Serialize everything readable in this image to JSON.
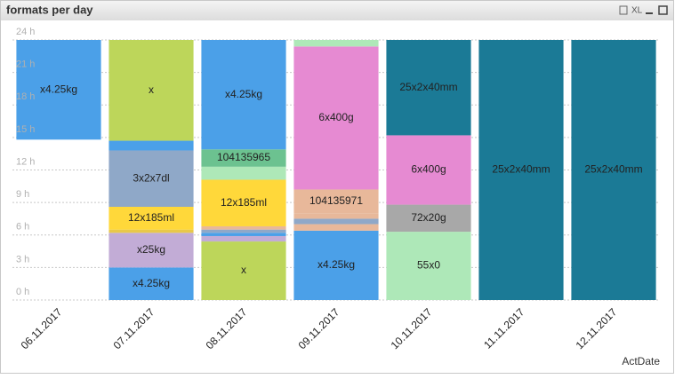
{
  "toolbar": {
    "export": "XL"
  },
  "chart_data": {
    "type": "stacked_bar",
    "title": "formats per day",
    "x_label": "ActDate",
    "categories": [
      "06.11.2017",
      "07.11.2017",
      "08.11.2017",
      "09.11.2017",
      "10.11.2017",
      "11.11.2017",
      "12.11.2017"
    ],
    "ylim": [
      0,
      24
    ],
    "yticks": [
      {
        "value": 0,
        "label": "0 h"
      },
      {
        "value": 3,
        "label": "3 h"
      },
      {
        "value": 6,
        "label": "6 h"
      },
      {
        "value": 9,
        "label": "9 h"
      },
      {
        "value": 12,
        "label": "12 h"
      },
      {
        "value": 15,
        "label": "15 h"
      },
      {
        "value": 18,
        "label": "18 h"
      },
      {
        "value": 21,
        "label": "21 h"
      },
      {
        "value": 24,
        "label": "24 h"
      }
    ],
    "grid": true,
    "bars": [
      [
        {
          "label": null,
          "value": 14.8,
          "color": null
        },
        {
          "label": "x4.25kg",
          "value": 9.2,
          "color": "#4ba0e8"
        }
      ],
      [
        {
          "label": "x4.25kg",
          "value": 3.0,
          "color": "#4ba0e8"
        },
        {
          "label": "x25kg",
          "value": 3.2,
          "color": "#c2acd6"
        },
        {
          "label": null,
          "value": 0.3,
          "color": "#e8c84a"
        },
        {
          "label": "12x185ml",
          "value": 2.1,
          "color": "#ffd83a"
        },
        {
          "label": "3x2x7dl",
          "value": 5.2,
          "color": "#8fa8c8"
        },
        {
          "label": null,
          "value": 0.9,
          "color": "#4ba0e8"
        },
        {
          "label": "x",
          "value": 9.3,
          "color": "#bdd65a"
        }
      ],
      [
        {
          "label": "x",
          "value": 5.4,
          "color": "#bdd65a"
        },
        {
          "label": null,
          "value": 0.5,
          "color": "#c2acd6"
        },
        {
          "label": null,
          "value": 0.3,
          "color": "#4ba0e8"
        },
        {
          "label": null,
          "value": 0.3,
          "color": "#8fa8c8"
        },
        {
          "label": null,
          "value": 0.3,
          "color": "#e8b89a"
        },
        {
          "label": "12x185ml",
          "value": 4.3,
          "color": "#ffd83a"
        },
        {
          "label": null,
          "value": 1.2,
          "color": "#aee8b8"
        },
        {
          "label": "104135965",
          "value": 1.6,
          "color": "#6cc290"
        },
        {
          "label": "x4.25kg",
          "value": 10.1,
          "color": "#4ba0e8"
        }
      ],
      [
        {
          "label": "x4.25kg",
          "value": 6.4,
          "color": "#4ba0e8"
        },
        {
          "label": null,
          "value": 0.6,
          "color": "#e8b89a"
        },
        {
          "label": null,
          "value": 0.5,
          "color": "#8fa8c8"
        },
        {
          "label": null,
          "value": 0.5,
          "color": "#e8b89a"
        },
        {
          "label": "104135971",
          "value": 2.2,
          "color": "#e8b89a"
        },
        {
          "label": "6x400g",
          "value": 13.2,
          "color": "#e68ad2"
        },
        {
          "label": null,
          "value": 0.6,
          "color": "#aee8b8"
        }
      ],
      [
        {
          "label": "55x0",
          "value": 6.3,
          "color": "#aee8b8"
        },
        {
          "label": "72x20g",
          "value": 2.5,
          "color": "#a8a8a8"
        },
        {
          "label": "6x400g",
          "value": 6.4,
          "color": "#e68ad2"
        },
        {
          "label": "25x2x40mm",
          "value": 8.8,
          "color": "#1b7a96"
        }
      ],
      [
        {
          "label": "25x2x40mm",
          "value": 24,
          "color": "#1b7a96"
        }
      ],
      [
        {
          "label": "25x2x40mm",
          "value": 24,
          "color": "#1b7a96"
        }
      ]
    ]
  }
}
